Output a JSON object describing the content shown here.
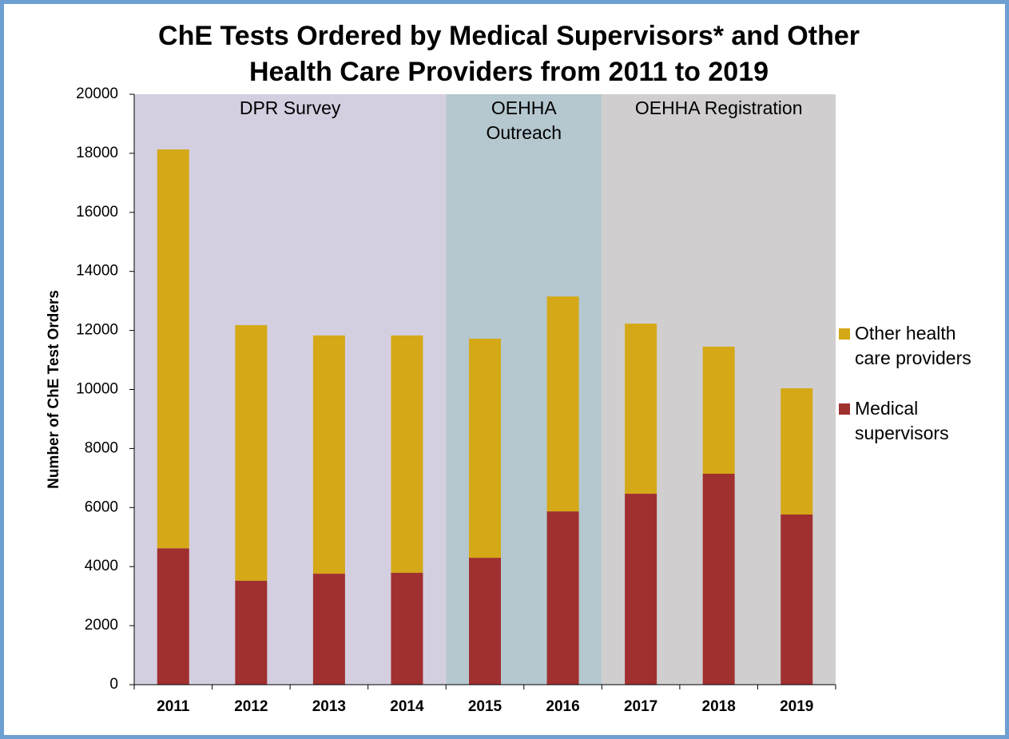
{
  "chart_data": {
    "type": "stacked_bar",
    "title": [
      "ChE Tests Ordered by Medical Supervisors* and Other",
      "Health Care Providers from 2011 to 2019"
    ],
    "ylabel": "Number of ChE Test Orders",
    "categories": [
      "2011",
      "2012",
      "2013",
      "2014",
      "2015",
      "2016",
      "2017",
      "2018",
      "2019"
    ],
    "series": [
      {
        "name": "Medical supervisors",
        "color": "#a03030",
        "values": [
          4620,
          3520,
          3760,
          3790,
          4300,
          5870,
          6470,
          7145,
          5765
        ]
      },
      {
        "name": "Other health care providers",
        "color": "#d4a817",
        "values": [
          13510,
          8660,
          8070,
          8040,
          7420,
          7280,
          5760,
          4305,
          4275
        ]
      }
    ],
    "regions": [
      {
        "label": [
          "DPR Survey"
        ],
        "from": "2011",
        "to": "2014",
        "color": "#d4cfe0"
      },
      {
        "label": [
          "OEHHA",
          "Outreach"
        ],
        "from": "2015",
        "to": "2016",
        "color": "#b5c7cf"
      },
      {
        "label": [
          "OEHHA Registration"
        ],
        "from": "2017",
        "to": "2019",
        "color": "#d0cece"
      }
    ],
    "ylim": [
      0,
      20000
    ],
    "yticks": [
      0,
      2000,
      4000,
      6000,
      8000,
      10000,
      12000,
      14000,
      16000,
      18000,
      20000
    ],
    "legend": "right"
  }
}
